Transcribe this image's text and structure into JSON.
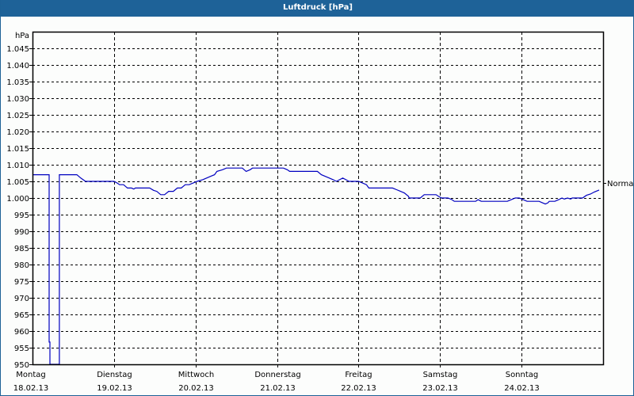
{
  "window": {
    "title": "Luftdruck [hPa]",
    "colors": {
      "titlebar": "#1e6298",
      "line": "#0000c0",
      "grid": "#000000",
      "background": "#fcfdfc"
    }
  },
  "axes": {
    "y_unit": "hPa",
    "y_ticks": [
      "1.045",
      "1.040",
      "1.035",
      "1.030",
      "1.025",
      "1.020",
      "1.015",
      "1.010",
      "1.005",
      "1.000",
      "995",
      "990",
      "985",
      "980",
      "975",
      "970",
      "965",
      "960",
      "955",
      "950"
    ],
    "x_days": [
      {
        "day": "Montag",
        "date": "18.02.13"
      },
      {
        "day": "Dienstag",
        "date": "19.02.13"
      },
      {
        "day": "Mittwoch",
        "date": "20.02.13"
      },
      {
        "day": "Donnerstag",
        "date": "21.02.13"
      },
      {
        "day": "Freitag",
        "date": "22.02.13"
      },
      {
        "day": "Samstag",
        "date": "23.02.13"
      },
      {
        "day": "Sonntag",
        "date": "24.02.13"
      }
    ],
    "right_marker": {
      "label": "Normal",
      "value": 1004.5
    }
  },
  "chart_data": {
    "type": "line",
    "title": "Luftdruck [hPa]",
    "xlabel": "",
    "ylabel": "hPa",
    "ylim": [
      950,
      1050
    ],
    "y_tick_step": 5,
    "grid": true,
    "categories": [
      "Montag 18.02.13",
      "Dienstag 19.02.13",
      "Mittwoch 20.02.13",
      "Donnerstag 21.02.13",
      "Freitag 22.02.13",
      "Samstag 23.02.13",
      "Sonntag 24.02.13"
    ],
    "annotations": [
      {
        "text": "Normal",
        "y": 1004.5,
        "position": "right"
      }
    ],
    "series": [
      {
        "name": "Luftdruck",
        "x_unit": "days since Montag 18.02.13 00:00",
        "points": [
          [
            0.0,
            1007
          ],
          [
            0.204,
            1007
          ],
          [
            0.204,
            956.7
          ],
          [
            0.214,
            956.7
          ],
          [
            0.214,
            950
          ],
          [
            0.33,
            950
          ],
          [
            0.33,
            1007
          ],
          [
            0.544,
            1007
          ],
          [
            0.592,
            1006
          ],
          [
            0.621,
            1005.5
          ],
          [
            0.65,
            1005
          ],
          [
            1.0,
            1005
          ],
          [
            1.039,
            1004.5
          ],
          [
            1.068,
            1004
          ],
          [
            1.117,
            1004
          ],
          [
            1.165,
            1003
          ],
          [
            1.214,
            1003
          ],
          [
            1.243,
            1002.7
          ],
          [
            1.262,
            1003
          ],
          [
            1.437,
            1003
          ],
          [
            1.485,
            1002.3
          ],
          [
            1.524,
            1002
          ],
          [
            1.573,
            1001
          ],
          [
            1.621,
            1001
          ],
          [
            1.67,
            1002
          ],
          [
            1.728,
            1002
          ],
          [
            1.777,
            1003
          ],
          [
            1.825,
            1003
          ],
          [
            1.874,
            1004
          ],
          [
            1.922,
            1004
          ],
          [
            1.971,
            1004.5
          ],
          [
            2.019,
            1005
          ],
          [
            2.087,
            1005.5
          ],
          [
            2.136,
            1006
          ],
          [
            2.184,
            1006.5
          ],
          [
            2.233,
            1007
          ],
          [
            2.262,
            1008
          ],
          [
            2.33,
            1008.5
          ],
          [
            2.379,
            1009
          ],
          [
            2.573,
            1009
          ],
          [
            2.621,
            1008
          ],
          [
            2.67,
            1008.5
          ],
          [
            2.699,
            1009
          ],
          [
            3.078,
            1009
          ],
          [
            3.126,
            1008.5
          ],
          [
            3.155,
            1008
          ],
          [
            3.495,
            1008
          ],
          [
            3.544,
            1007
          ],
          [
            3.592,
            1006.5
          ],
          [
            3.641,
            1006
          ],
          [
            3.689,
            1005.5
          ],
          [
            3.728,
            1005
          ],
          [
            3.767,
            1005.5
          ],
          [
            3.806,
            1006
          ],
          [
            3.845,
            1005.5
          ],
          [
            3.883,
            1005
          ],
          [
            4.0,
            1005
          ],
          [
            4.049,
            1004.5
          ],
          [
            4.097,
            1004
          ],
          [
            4.126,
            1003
          ],
          [
            4.417,
            1003
          ],
          [
            4.466,
            1002.5
          ],
          [
            4.515,
            1002
          ],
          [
            4.563,
            1001.5
          ],
          [
            4.612,
            1000.5
          ],
          [
            4.621,
            1000
          ],
          [
            4.757,
            1000
          ],
          [
            4.806,
            1001
          ],
          [
            4.951,
            1001
          ],
          [
            4.981,
            1000.5
          ],
          [
            5.019,
            1000
          ],
          [
            5.097,
            1000
          ],
          [
            5.146,
            999.5
          ],
          [
            5.175,
            999
          ],
          [
            5.437,
            999
          ],
          [
            5.466,
            999.5
          ],
          [
            5.505,
            999
          ],
          [
            5.825,
            999
          ],
          [
            5.874,
            999.5
          ],
          [
            5.922,
            1000
          ],
          [
            5.971,
            1000
          ],
          [
            6.019,
            999.5
          ],
          [
            6.068,
            999
          ],
          [
            6.214,
            999
          ],
          [
            6.262,
            998.5
          ],
          [
            6.291,
            998.2
          ],
          [
            6.32,
            998.5
          ],
          [
            6.34,
            999
          ],
          [
            6.408,
            999
          ],
          [
            6.456,
            999.5
          ],
          [
            6.495,
            1000
          ],
          [
            6.524,
            999.7
          ],
          [
            6.563,
            1000
          ],
          [
            6.602,
            999.7
          ],
          [
            6.621,
            1000
          ],
          [
            6.748,
            1000
          ],
          [
            6.796,
            1000.8
          ],
          [
            6.845,
            1001.2
          ],
          [
            6.893,
            1001.8
          ],
          [
            6.951,
            1002.4
          ]
        ]
      }
    ]
  }
}
